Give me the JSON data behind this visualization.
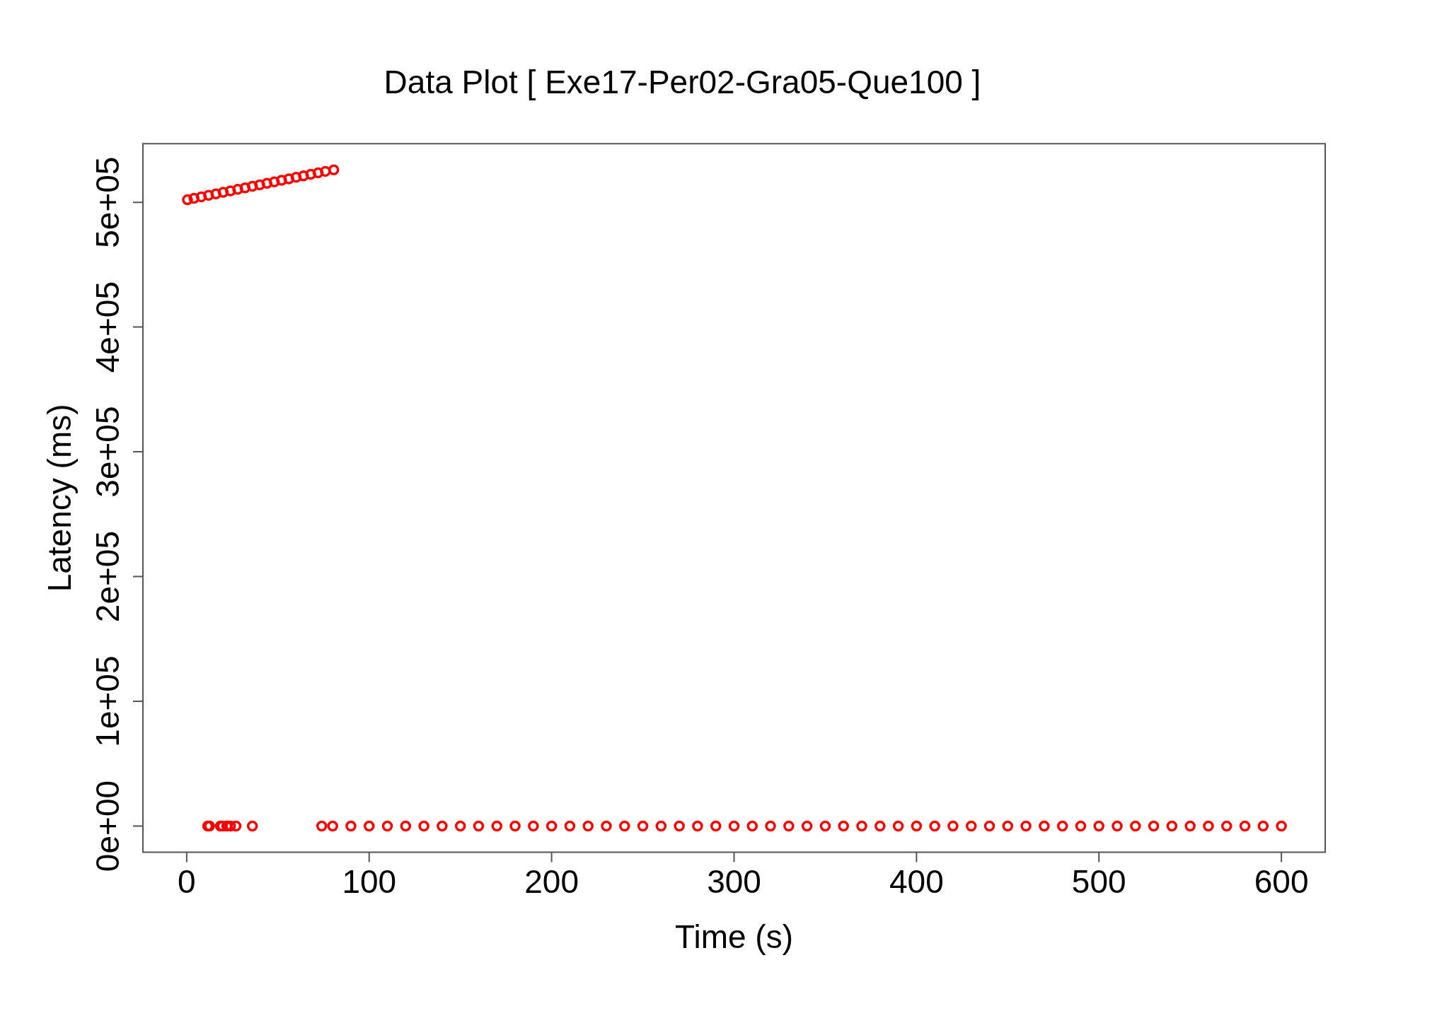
{
  "chart_data": {
    "type": "scatter",
    "title": "Data Plot [ Exe17-Per02-Gra05-Que100 ]",
    "xlabel": "Time (s)",
    "ylabel": "Latency (ms)",
    "xlim": [
      -24,
      624
    ],
    "xticks": [
      0,
      100,
      200,
      300,
      400,
      500,
      600
    ],
    "ylim": [
      -21000,
      547000
    ],
    "yticks": [
      {
        "value": 0,
        "label": "0e+00"
      },
      {
        "value": 100000,
        "label": "1e+05"
      },
      {
        "value": 200000,
        "label": "2e+05"
      },
      {
        "value": 300000,
        "label": "3e+05"
      },
      {
        "value": 400000,
        "label": "4e+05"
      },
      {
        "value": 500000,
        "label": "5e+05"
      }
    ],
    "grid": false,
    "legend": false,
    "marker": "circle",
    "series": [
      {
        "color": "#ff0000",
        "x": [
          0.4,
          4,
          8,
          12,
          16,
          20,
          24,
          28,
          32,
          36,
          40,
          44,
          48,
          52,
          56,
          60,
          64,
          68,
          72,
          76,
          80.6
        ],
        "values": [
          502000,
          503200,
          504400,
          505600,
          506800,
          508000,
          509200,
          510400,
          511600,
          512800,
          514000,
          515200,
          516400,
          517600,
          518800,
          520000,
          521200,
          522400,
          523600,
          524800,
          526000
        ]
      },
      {
        "color": "#ff0000",
        "x": [
          11.5,
          12.5,
          18.5,
          19.5,
          22,
          24,
          27,
          36,
          74,
          80,
          90,
          100,
          110,
          120,
          130,
          140,
          150,
          160,
          170,
          180,
          190,
          200,
          210,
          220,
          230,
          240,
          250,
          260,
          270,
          280,
          290,
          300,
          310,
          320,
          330,
          340,
          350,
          360,
          370,
          380,
          390,
          400,
          410,
          420,
          430,
          440,
          450,
          460,
          470,
          480,
          490,
          500,
          510,
          520,
          530,
          540,
          550,
          560,
          570,
          580,
          590,
          600
        ],
        "values": [
          0,
          0,
          0,
          0,
          0,
          0,
          0,
          0,
          0,
          0,
          0,
          0,
          0,
          0,
          0,
          0,
          0,
          0,
          0,
          0,
          0,
          0,
          0,
          0,
          0,
          0,
          0,
          0,
          0,
          0,
          0,
          0,
          0,
          0,
          0,
          0,
          0,
          0,
          0,
          0,
          0,
          0,
          0,
          0,
          0,
          0,
          0,
          0,
          0,
          0,
          0,
          0,
          0,
          0,
          0,
          0,
          0,
          0,
          0,
          0,
          0,
          0
        ]
      }
    ]
  }
}
